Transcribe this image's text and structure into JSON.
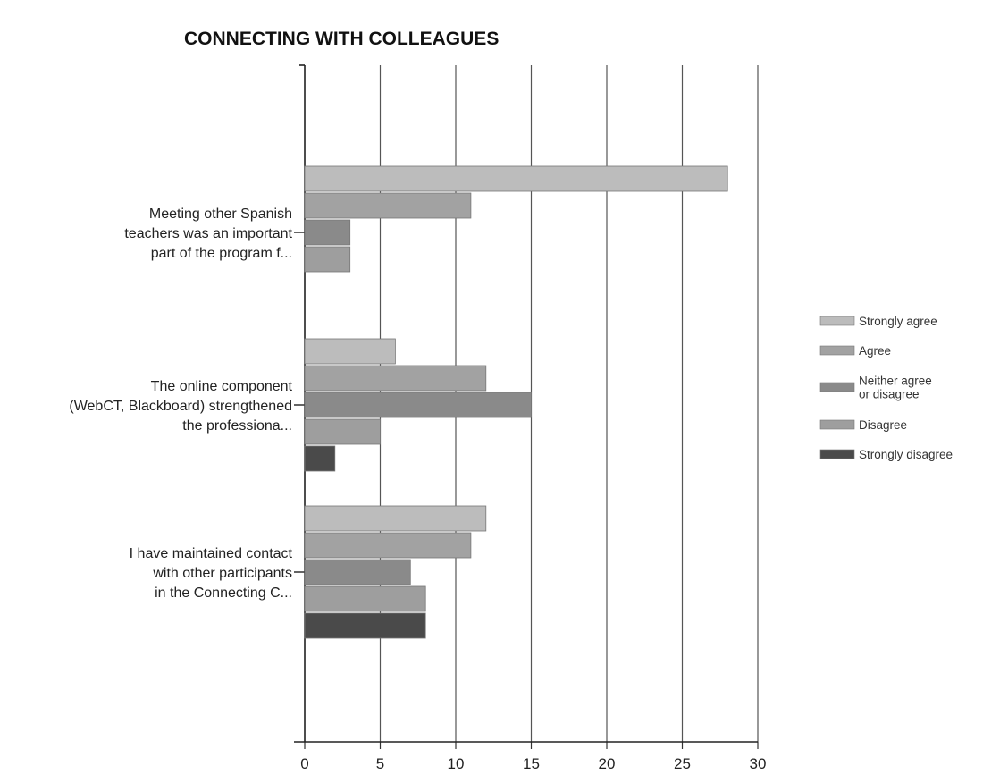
{
  "chart_data": {
    "type": "bar",
    "orientation": "horizontal",
    "title": "CONNECTING WITH COLLEAGUES",
    "xlabel": "",
    "ylabel": "",
    "xlim": [
      0,
      30
    ],
    "x_ticks": [
      0,
      5,
      10,
      15,
      20,
      25,
      30
    ],
    "grid": true,
    "legend_position": "right",
    "categories": [
      {
        "lines": [
          "Meeting other Spanish",
          "teachers was an important",
          "part of the program f..."
        ]
      },
      {
        "lines": [
          "The online component",
          "(WebCT, Blackboard) strengthened",
          "the professiona..."
        ]
      },
      {
        "lines": [
          "I have maintained contact",
          "with other participants",
          "in the Connecting C..."
        ]
      }
    ],
    "series": [
      {
        "name": "Strongly agree",
        "color": "#bcbcbc",
        "values": [
          28,
          6,
          12
        ]
      },
      {
        "name": "Agree",
        "color": "#a2a2a2",
        "values": [
          11,
          12,
          11
        ]
      },
      {
        "name": "Neither agree or disagree",
        "name_lines": [
          "Neither agree",
          "or disagree"
        ],
        "color": "#8a8a8a",
        "values": [
          3,
          15,
          7
        ]
      },
      {
        "name": "Disagree",
        "color": "#9e9e9e",
        "values": [
          3,
          5,
          8
        ]
      },
      {
        "name": "Strongly disagree",
        "color": "#4a4a4a",
        "values": [
          0,
          2,
          8
        ]
      }
    ]
  }
}
